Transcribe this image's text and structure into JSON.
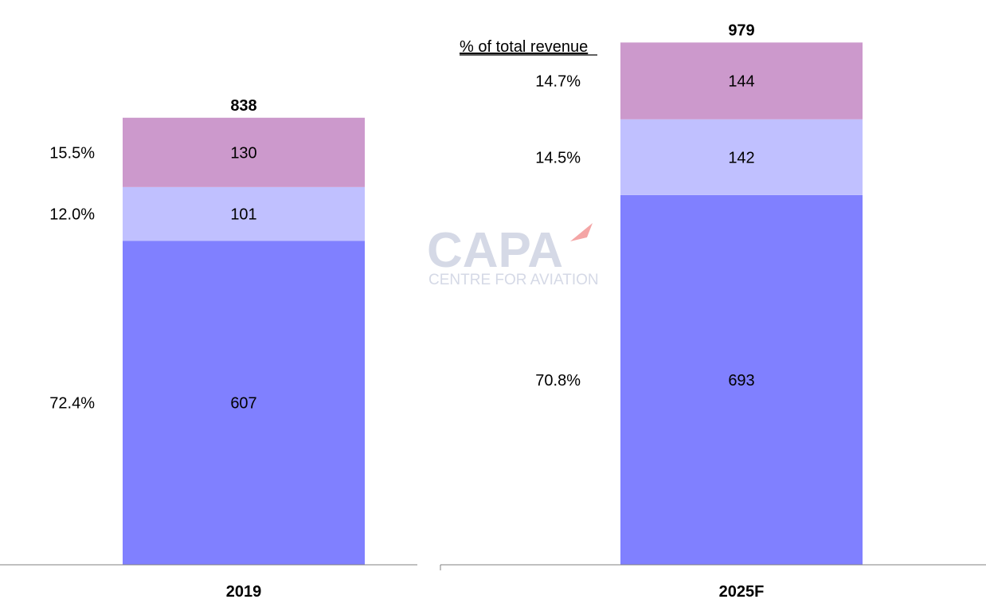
{
  "chart_data": {
    "type": "bar",
    "stacked": true,
    "categories": [
      "2019",
      "2025F"
    ],
    "series": [
      {
        "values": [
          607,
          693
        ],
        "color": "#8080ff"
      },
      {
        "values": [
          101,
          142
        ],
        "color": "#c0c0ff"
      },
      {
        "values": [
          130,
          144
        ],
        "color": "#cc99cc"
      }
    ],
    "totals": [
      "838",
      "979"
    ],
    "value_labels": [
      [
        "607",
        "101",
        "130"
      ],
      [
        "693",
        "142",
        "144"
      ]
    ],
    "percent_labels": [
      [
        "72.4%",
        "12.0%",
        "15.5%"
      ],
      [
        "70.8%",
        "14.5%",
        "14.7%"
      ]
    ],
    "annotation": "% of total revenue",
    "watermark": {
      "brand": "CAPA",
      "tagline": "CENTRE FOR AVIATION",
      "accent": "#f08080"
    },
    "grid": false,
    "legend": "none"
  }
}
